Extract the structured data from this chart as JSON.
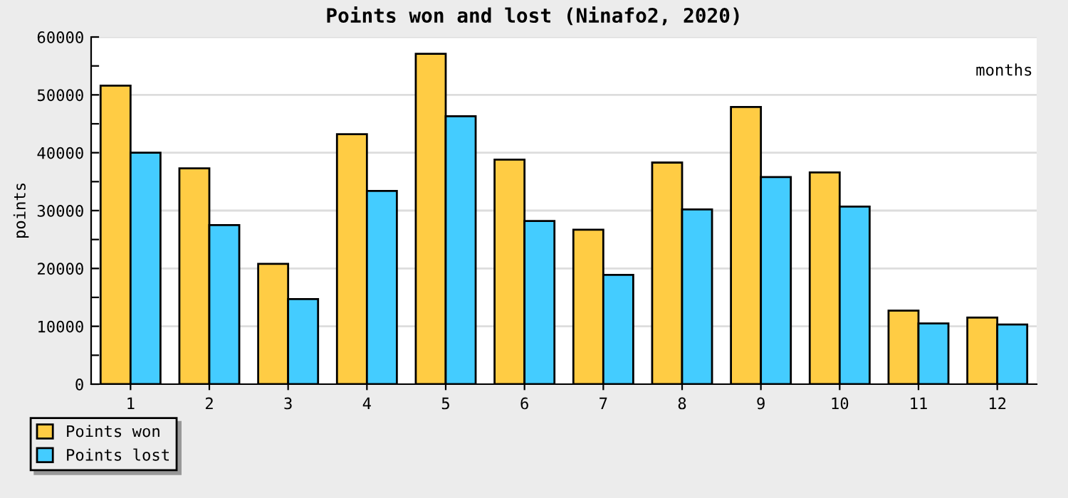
{
  "chart_data": {
    "type": "bar",
    "title": "Points won and lost (Ninafo2, 2020)",
    "xlabel": "months",
    "ylabel": "points",
    "categories": [
      "1",
      "2",
      "3",
      "4",
      "5",
      "6",
      "7",
      "8",
      "9",
      "10",
      "11",
      "12"
    ],
    "series": [
      {
        "name": "Points won",
        "color": "#ffcc44",
        "values": [
          51600,
          37300,
          20800,
          43200,
          57100,
          38800,
          26700,
          38300,
          47900,
          36600,
          12700,
          11500
        ]
      },
      {
        "name": "Points lost",
        "color": "#44ccff",
        "values": [
          40000,
          27500,
          14700,
          33400,
          46300,
          28200,
          18900,
          30200,
          35800,
          30700,
          10500,
          10300
        ]
      }
    ],
    "ylim": [
      0,
      60000
    ],
    "yticks": [
      0,
      {
        "value": 5000,
        "label": null
      },
      10000,
      {
        "value": 15000,
        "label": null
      },
      20000,
      {
        "value": 25000,
        "label": null
      },
      30000,
      {
        "value": 35000,
        "label": null
      },
      40000,
      {
        "value": 45000,
        "label": null
      },
      50000,
      {
        "value": 55000,
        "label": null
      },
      60000
    ],
    "grid": "y",
    "legend": "bottom left"
  }
}
